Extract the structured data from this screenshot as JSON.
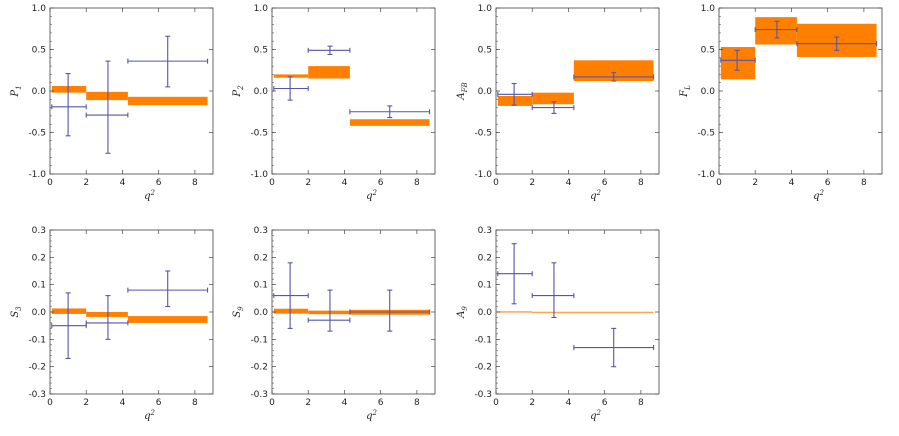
{
  "colors": {
    "band": "#ff8000",
    "data": "#5555aa",
    "frame": "#444444"
  },
  "chart_data": [
    {
      "type": "errorbar-band",
      "ylabel": "P",
      "ylabel_sub": "1",
      "xlabel": "q",
      "xlabel_sup": "2",
      "xlim": [
        0,
        9
      ],
      "ylim": [
        -1.0,
        1.0
      ],
      "xticks": [
        0,
        2,
        4,
        6,
        8
      ],
      "yticks": [
        -1.0,
        -0.5,
        0.0,
        0.5,
        1.0
      ],
      "ytick_labels": [
        "-1.0",
        "-0.5",
        "0.0",
        "0.5",
        "1.0"
      ],
      "bands": [
        {
          "x0": 0.1,
          "x1": 2.0,
          "low": -0.02,
          "high": 0.06
        },
        {
          "x0": 2.0,
          "x1": 4.3,
          "low": -0.11,
          "high": -0.01
        },
        {
          "x0": 4.3,
          "x1": 8.7,
          "low": -0.17,
          "high": -0.07
        }
      ],
      "points": [
        {
          "x": 1.0,
          "xerr_low": 0.9,
          "xerr_high": 1.0,
          "y": -0.19,
          "yerr_low": 0.35,
          "yerr_high": 0.4
        },
        {
          "x": 3.2,
          "xerr_low": 1.2,
          "xerr_high": 1.1,
          "y": -0.29,
          "yerr_low": 0.46,
          "yerr_high": 0.65
        },
        {
          "x": 6.5,
          "xerr_low": 2.2,
          "xerr_high": 2.2,
          "y": 0.36,
          "yerr_low": 0.31,
          "yerr_high": 0.3
        }
      ]
    },
    {
      "type": "errorbar-band",
      "ylabel": "P",
      "ylabel_sub": "2",
      "xlabel": "q",
      "xlabel_sup": "2",
      "xlim": [
        0,
        9
      ],
      "ylim": [
        -1.0,
        1.0
      ],
      "xticks": [
        0,
        2,
        4,
        6,
        8
      ],
      "yticks": [
        -1.0,
        -0.5,
        0.0,
        0.5,
        1.0
      ],
      "ytick_labels": [
        "-1.0",
        "-0.5",
        "0.0",
        "0.5",
        "1.0"
      ],
      "bands": [
        {
          "x0": 0.1,
          "x1": 2.0,
          "low": 0.16,
          "high": 0.2
        },
        {
          "x0": 2.0,
          "x1": 4.3,
          "low": 0.15,
          "high": 0.3
        },
        {
          "x0": 4.3,
          "x1": 8.7,
          "low": -0.42,
          "high": -0.34
        }
      ],
      "points": [
        {
          "x": 1.0,
          "xerr_low": 0.9,
          "xerr_high": 1.0,
          "y": 0.03,
          "yerr_low": 0.14,
          "yerr_high": 0.14
        },
        {
          "x": 3.2,
          "xerr_low": 1.2,
          "xerr_high": 1.1,
          "y": 0.49,
          "yerr_low": 0.05,
          "yerr_high": 0.05
        },
        {
          "x": 6.5,
          "xerr_low": 2.2,
          "xerr_high": 2.2,
          "y": -0.25,
          "yerr_low": 0.07,
          "yerr_high": 0.07
        }
      ]
    },
    {
      "type": "errorbar-band",
      "ylabel": "A",
      "ylabel_sub": "FB",
      "xlabel": "q",
      "xlabel_sup": "2",
      "xlim": [
        0,
        9
      ],
      "ylim": [
        -1.0,
        1.0
      ],
      "xticks": [
        0,
        2,
        4,
        6,
        8
      ],
      "yticks": [
        -1.0,
        -0.5,
        0.0,
        0.5,
        1.0
      ],
      "ytick_labels": [
        "-1.0",
        "-0.5",
        "0.0",
        "0.5",
        "1.0"
      ],
      "bands": [
        {
          "x0": 0.1,
          "x1": 2.0,
          "low": -0.18,
          "high": -0.06
        },
        {
          "x0": 2.0,
          "x1": 4.3,
          "low": -0.16,
          "high": -0.02
        },
        {
          "x0": 4.3,
          "x1": 8.7,
          "low": 0.12,
          "high": 0.37
        }
      ],
      "points": [
        {
          "x": 1.0,
          "xerr_low": 0.9,
          "xerr_high": 1.0,
          "y": -0.04,
          "yerr_low": 0.13,
          "yerr_high": 0.13
        },
        {
          "x": 3.2,
          "xerr_low": 1.2,
          "xerr_high": 1.1,
          "y": -0.2,
          "yerr_low": 0.07,
          "yerr_high": 0.07
        },
        {
          "x": 6.5,
          "xerr_low": 2.2,
          "xerr_high": 2.2,
          "y": 0.17,
          "yerr_low": 0.05,
          "yerr_high": 0.05
        }
      ]
    },
    {
      "type": "errorbar-band",
      "ylabel": "F",
      "ylabel_sub": "L",
      "xlabel": "q",
      "xlabel_sup": "2",
      "xlim": [
        0,
        9
      ],
      "ylim": [
        -1.0,
        1.0
      ],
      "xticks": [
        0,
        2,
        4,
        6,
        8
      ],
      "yticks": [
        -1.0,
        -0.5,
        0.0,
        0.5,
        1.0
      ],
      "ytick_labels": [
        "-1.0",
        "-0.5",
        "0.0",
        "0.5",
        "1.0"
      ],
      "bands": [
        {
          "x0": 0.1,
          "x1": 2.0,
          "low": 0.14,
          "high": 0.53
        },
        {
          "x0": 2.0,
          "x1": 4.3,
          "low": 0.56,
          "high": 0.89
        },
        {
          "x0": 4.3,
          "x1": 8.7,
          "low": 0.41,
          "high": 0.81
        }
      ],
      "points": [
        {
          "x": 1.0,
          "xerr_low": 0.9,
          "xerr_high": 1.0,
          "y": 0.37,
          "yerr_low": 0.12,
          "yerr_high": 0.12
        },
        {
          "x": 3.2,
          "xerr_low": 1.2,
          "xerr_high": 1.1,
          "y": 0.74,
          "yerr_low": 0.1,
          "yerr_high": 0.1
        },
        {
          "x": 6.5,
          "xerr_low": 2.2,
          "xerr_high": 2.2,
          "y": 0.57,
          "yerr_low": 0.08,
          "yerr_high": 0.08
        }
      ]
    },
    {
      "type": "errorbar-band",
      "ylabel": "S",
      "ylabel_sub": "3",
      "xlabel": "q",
      "xlabel_sup": "2",
      "xlim": [
        0,
        9
      ],
      "ylim": [
        -0.3,
        0.3
      ],
      "xticks": [
        0,
        2,
        4,
        6,
        8
      ],
      "yticks": [
        -0.3,
        -0.2,
        -0.1,
        0.0,
        0.1,
        0.2,
        0.3
      ],
      "ytick_labels": [
        "-0.3",
        "-0.2",
        "-0.1",
        "0.0",
        "0.1",
        "0.2",
        "0.3"
      ],
      "bands": [
        {
          "x0": 0.1,
          "x1": 2.0,
          "low": -0.007,
          "high": 0.013
        },
        {
          "x0": 2.0,
          "x1": 4.3,
          "low": -0.018,
          "high": 0.0
        },
        {
          "x0": 4.3,
          "x1": 8.7,
          "low": -0.04,
          "high": -0.015
        }
      ],
      "points": [
        {
          "x": 1.0,
          "xerr_low": 0.9,
          "xerr_high": 1.0,
          "y": -0.05,
          "yerr_low": 0.12,
          "yerr_high": 0.12
        },
        {
          "x": 3.2,
          "xerr_low": 1.2,
          "xerr_high": 1.1,
          "y": -0.04,
          "yerr_low": 0.06,
          "yerr_high": 0.1
        },
        {
          "x": 6.5,
          "xerr_low": 2.2,
          "xerr_high": 2.2,
          "y": 0.08,
          "yerr_low": 0.06,
          "yerr_high": 0.07
        }
      ]
    },
    {
      "type": "errorbar-band",
      "ylabel": "S",
      "ylabel_sub": "9",
      "xlabel": "q",
      "xlabel_sup": "2",
      "xlim": [
        0,
        9
      ],
      "ylim": [
        -0.3,
        0.3
      ],
      "xticks": [
        0,
        2,
        4,
        6,
        8
      ],
      "yticks": [
        -0.3,
        -0.2,
        -0.1,
        0.0,
        0.1,
        0.2,
        0.3
      ],
      "ytick_labels": [
        "-0.3",
        "-0.2",
        "-0.1",
        "0.0",
        "0.1",
        "0.2",
        "0.3"
      ],
      "bands": [
        {
          "x0": 0.1,
          "x1": 2.0,
          "low": -0.006,
          "high": 0.012
        },
        {
          "x0": 2.0,
          "x1": 4.3,
          "low": -0.008,
          "high": 0.005
        },
        {
          "x0": 4.3,
          "x1": 8.7,
          "low": -0.01,
          "high": 0.008
        }
      ],
      "points": [
        {
          "x": 1.0,
          "xerr_low": 0.9,
          "xerr_high": 1.0,
          "y": 0.06,
          "yerr_low": 0.12,
          "yerr_high": 0.12
        },
        {
          "x": 3.2,
          "xerr_low": 1.2,
          "xerr_high": 1.1,
          "y": -0.03,
          "yerr_low": 0.04,
          "yerr_high": 0.11
        },
        {
          "x": 6.5,
          "xerr_low": 2.2,
          "xerr_high": 2.2,
          "y": 0.0,
          "yerr_low": 0.07,
          "yerr_high": 0.08
        }
      ]
    },
    {
      "type": "errorbar-band",
      "ylabel": "A",
      "ylabel_sub": "9",
      "xlabel": "q",
      "xlabel_sup": "2",
      "xlim": [
        0,
        9
      ],
      "ylim": [
        -0.3,
        0.3
      ],
      "xticks": [
        0,
        2,
        4,
        6,
        8
      ],
      "yticks": [
        -0.3,
        -0.2,
        -0.1,
        0.0,
        0.1,
        0.2,
        0.3
      ],
      "ytick_labels": [
        "-0.3",
        "-0.2",
        "-0.1",
        "0.0",
        "0.1",
        "0.2",
        "0.3"
      ],
      "bands": [
        {
          "x0": 0.1,
          "x1": 2.0,
          "low": -0.002,
          "high": 0.003
        },
        {
          "x0": 2.0,
          "x1": 4.3,
          "low": -0.001,
          "high": 0.001
        },
        {
          "x0": 4.3,
          "x1": 8.7,
          "low": -0.001,
          "high": 0.001
        }
      ],
      "points": [
        {
          "x": 1.0,
          "xerr_low": 0.9,
          "xerr_high": 1.0,
          "y": 0.14,
          "yerr_low": 0.11,
          "yerr_high": 0.11
        },
        {
          "x": 3.2,
          "xerr_low": 1.2,
          "xerr_high": 1.1,
          "y": 0.06,
          "yerr_low": 0.08,
          "yerr_high": 0.12
        },
        {
          "x": 6.5,
          "xerr_low": 2.2,
          "xerr_high": 2.2,
          "y": -0.13,
          "yerr_low": 0.07,
          "yerr_high": 0.07
        }
      ]
    }
  ]
}
